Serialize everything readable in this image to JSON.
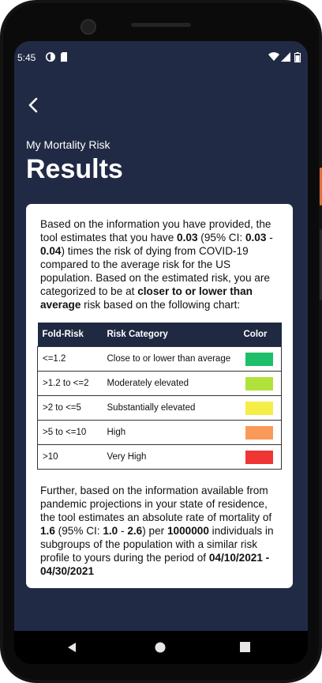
{
  "status_bar": {
    "time": "5:45"
  },
  "header": {
    "subtitle": "My Mortality Risk",
    "title": "Results"
  },
  "summary": {
    "p1_a": "Based on the information you have provided, the tool estimates that you have ",
    "fold_risk": "0.03",
    "p1_b": " (95% CI: ",
    "ci_low": "0.03",
    "ci_sep": " - ",
    "ci_high": "0.04",
    "p1_c": ") times the risk of dying from COVID-19 compared to the average risk for the US population. Based on the estimated risk, you are categorized to be at ",
    "category": "closer to or lower than average",
    "p1_d": " risk based on the following chart:"
  },
  "risk_table": {
    "headers": {
      "fold": "Fold-Risk",
      "category": "Risk Category",
      "color": "Color"
    },
    "rows": [
      {
        "fold": "<=1.2",
        "category": "Close to or lower than average",
        "color": "#1fbf6a"
      },
      {
        "fold": ">1.2 to <=2",
        "category": "Moderately elevated",
        "color": "#b1e23c"
      },
      {
        "fold": ">2 to <=5",
        "category": "Substantially elevated",
        "color": "#f5ee48"
      },
      {
        "fold": ">5 to <=10",
        "category": "High",
        "color": "#f99a5a"
      },
      {
        "fold": ">10",
        "category": "Very High",
        "color": "#f03535"
      }
    ]
  },
  "mortality": {
    "p2_a": "Further, based on the information available from pandemic projections in your state of residence, the tool estimates an absolute rate of mortality of ",
    "rate": "1.6",
    "p2_b": " (95% CI: ",
    "ci_low": "1.0",
    "ci_sep": " - ",
    "ci_high": "2.6",
    "p2_c": ") per ",
    "per": "1000000",
    "p2_d": " individuals in subgroups of the population with a similar risk profile to yours during the period of ",
    "period": "04/10/2021 - 04/30/2021"
  },
  "icons": {
    "back": "chevron-left-icon",
    "nav_back": "triangle-back-icon",
    "nav_home": "circle-home-icon",
    "nav_recent": "square-recents-icon"
  }
}
